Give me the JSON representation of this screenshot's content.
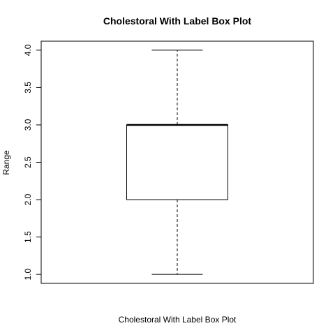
{
  "chart_data": {
    "type": "box",
    "title": "Cholestoral With Label Box Plot",
    "xlabel": "Cholestoral With Label Box Plot",
    "ylabel": "Range",
    "ylim": [
      0.88,
      4.12
    ],
    "y_ticks": [
      1.0,
      1.5,
      2.0,
      2.5,
      3.0,
      3.5,
      4.0
    ],
    "y_tick_labels": [
      "1.0",
      "1.5",
      "2.0",
      "2.5",
      "3.0",
      "3.5",
      "4.0"
    ],
    "boxes": [
      {
        "min": 1.0,
        "q1": 2.0,
        "median": 3.0,
        "q3": 3.0,
        "max": 4.0
      }
    ],
    "grid": false,
    "colors": {
      "stroke": "#000000",
      "fill": "#ffffff"
    }
  }
}
